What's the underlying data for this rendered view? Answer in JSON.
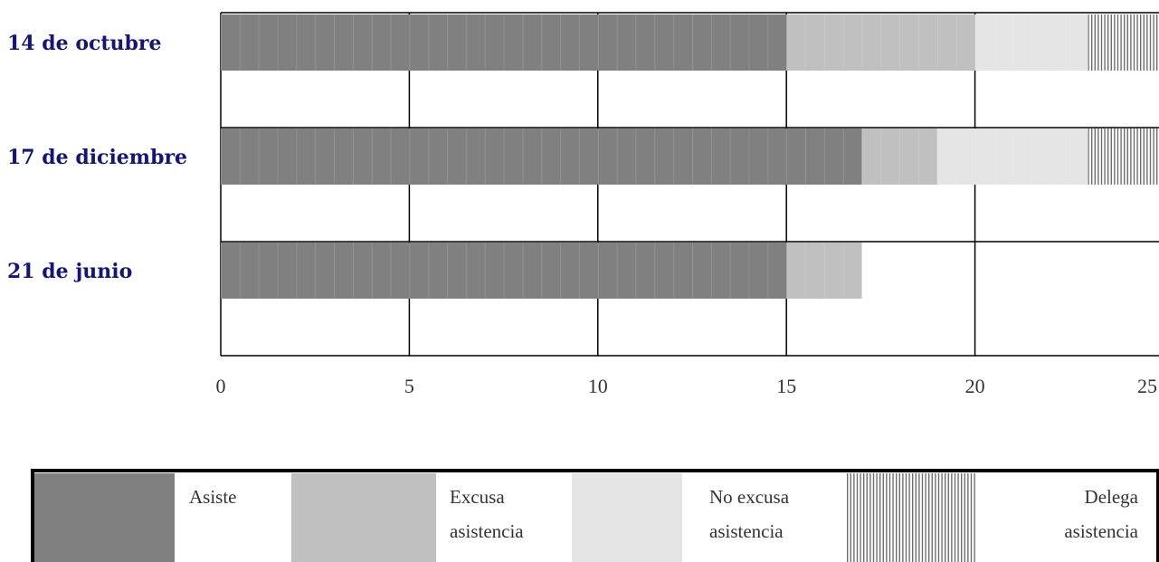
{
  "chart_data": {
    "type": "bar",
    "orientation": "horizontal",
    "stacked": true,
    "categories": [
      "14 de octubre",
      "17 de diciembre",
      "21 de junio"
    ],
    "series": [
      {
        "name": "Asiste",
        "values": [
          15,
          17,
          15
        ],
        "color": "#808080"
      },
      {
        "name": "Excusa asistencia",
        "values": [
          5,
          2,
          2
        ],
        "color": "#c0c0c0"
      },
      {
        "name": "No excusa asistencia",
        "values": [
          3,
          4,
          0
        ],
        "color": "#e5e5e5"
      },
      {
        "name": "Delega asistencia",
        "values": [
          2,
          2,
          0
        ],
        "color": "#ffffff",
        "pattern": "vertical-lines"
      }
    ],
    "xlim": [
      0,
      25
    ],
    "xticks": [
      "0",
      "5",
      "10",
      "15",
      "20",
      "25"
    ],
    "grid": true,
    "legend_position": "bottom",
    "title": "",
    "xlabel": "",
    "ylabel": ""
  }
}
